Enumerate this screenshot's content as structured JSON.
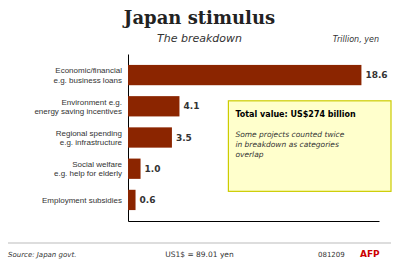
{
  "chart_data": {
    "type": "bar",
    "orientation": "horizontal",
    "title": "Japan stimulus",
    "subtitle": "The breakdown",
    "xlabel": "Trillion, yen",
    "categories": [
      "Economic/financial\ne.g. business loans",
      "Environment e.g.\nenergy saving incentives",
      "Regional spending\ne.g. infrastructure",
      "Social welfare\ne.g. help for elderly",
      "Employment subsidies"
    ],
    "values": [
      18.6,
      4.1,
      3.5,
      1.0,
      0.6
    ],
    "value_labels": [
      "18.6",
      "4.1",
      "3.5",
      "1.0",
      "0.6"
    ],
    "color": "#8B2500",
    "xlim": [
      0,
      20
    ],
    "data_labels": true,
    "tick_labels": "y",
    "grid": false,
    "annotations": [
      "Total value: US$274 billion",
      "Some projects counted twice\nin breakdown as categories\noverlap",
      "Source: Japan govt.",
      "US1$ = 89.01 yen",
      "081209",
      "AFP"
    ]
  }
}
